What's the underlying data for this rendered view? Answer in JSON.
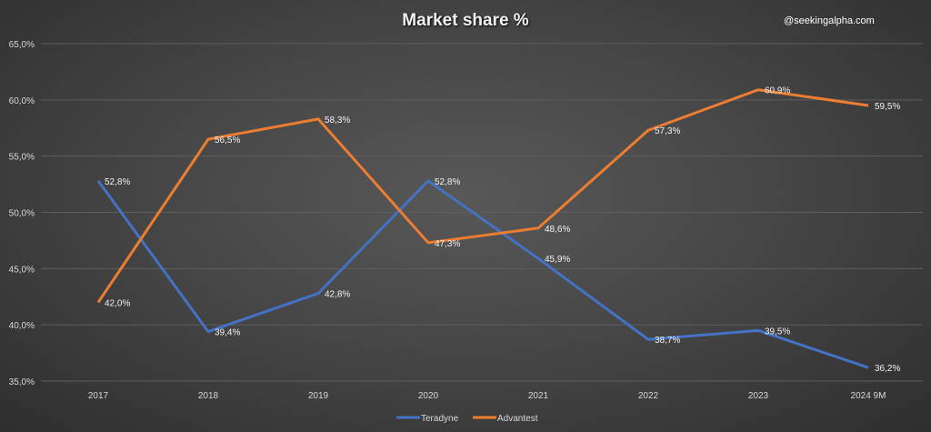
{
  "watermark": "@seekingalpha.com",
  "chart_data": {
    "type": "line",
    "title": "Market share %",
    "xlabel": "",
    "ylabel": "",
    "categories": [
      "2017",
      "2018",
      "2019",
      "2020",
      "2021",
      "2022",
      "2023",
      "2024 9M"
    ],
    "ylim": [
      35,
      65
    ],
    "yticks": [
      "35,0%",
      "40,0%",
      "45,0%",
      "50,0%",
      "55,0%",
      "60,0%",
      "65,0%"
    ],
    "ytick_values": [
      35,
      40,
      45,
      50,
      55,
      60,
      65
    ],
    "grid": true,
    "legend_position": "bottom",
    "series": [
      {
        "name": "Teradyne",
        "color": "#4472C4",
        "values": [
          52.8,
          39.4,
          42.8,
          52.8,
          45.9,
          38.7,
          39.5,
          36.2
        ],
        "labels": [
          "52,8%",
          "39,4%",
          "42,8%",
          "52,8%",
          "45,9%",
          "38,7%",
          "39,5%",
          "36,2%"
        ]
      },
      {
        "name": "Advantest",
        "color": "#ED7D31",
        "values": [
          42.0,
          56.5,
          58.3,
          47.3,
          48.6,
          57.3,
          60.9,
          59.5
        ],
        "labels": [
          "42,0%",
          "56,5%",
          "58,3%",
          "47,3%",
          "48,6%",
          "57,3%",
          "60,9%",
          "59,5%"
        ]
      }
    ]
  }
}
